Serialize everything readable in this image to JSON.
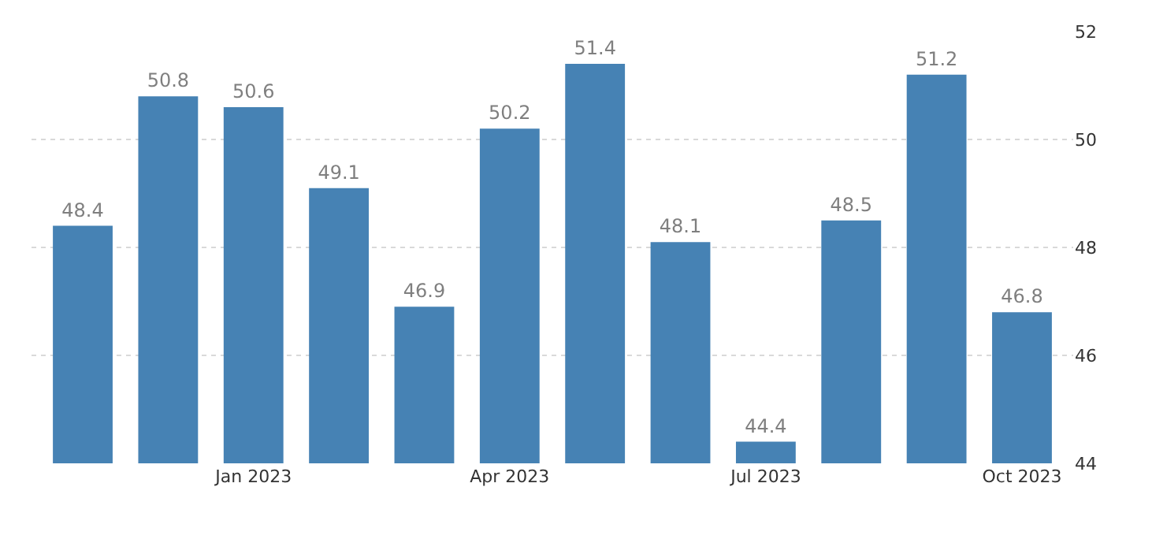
{
  "chart_data": {
    "type": "bar",
    "categories": [
      null,
      null,
      "Jan 2023",
      null,
      null,
      "Apr 2023",
      null,
      null,
      "Jul 2023",
      null,
      null,
      "Oct 2023"
    ],
    "values": [
      48.4,
      50.8,
      50.6,
      49.1,
      46.9,
      50.2,
      51.4,
      48.1,
      44.4,
      48.5,
      51.2,
      46.8
    ],
    "color": "#4682b4",
    "data_labels": true,
    "ylim": [
      44,
      52
    ],
    "yticks": [
      44,
      46,
      48,
      50,
      52
    ],
    "grid": "y"
  }
}
